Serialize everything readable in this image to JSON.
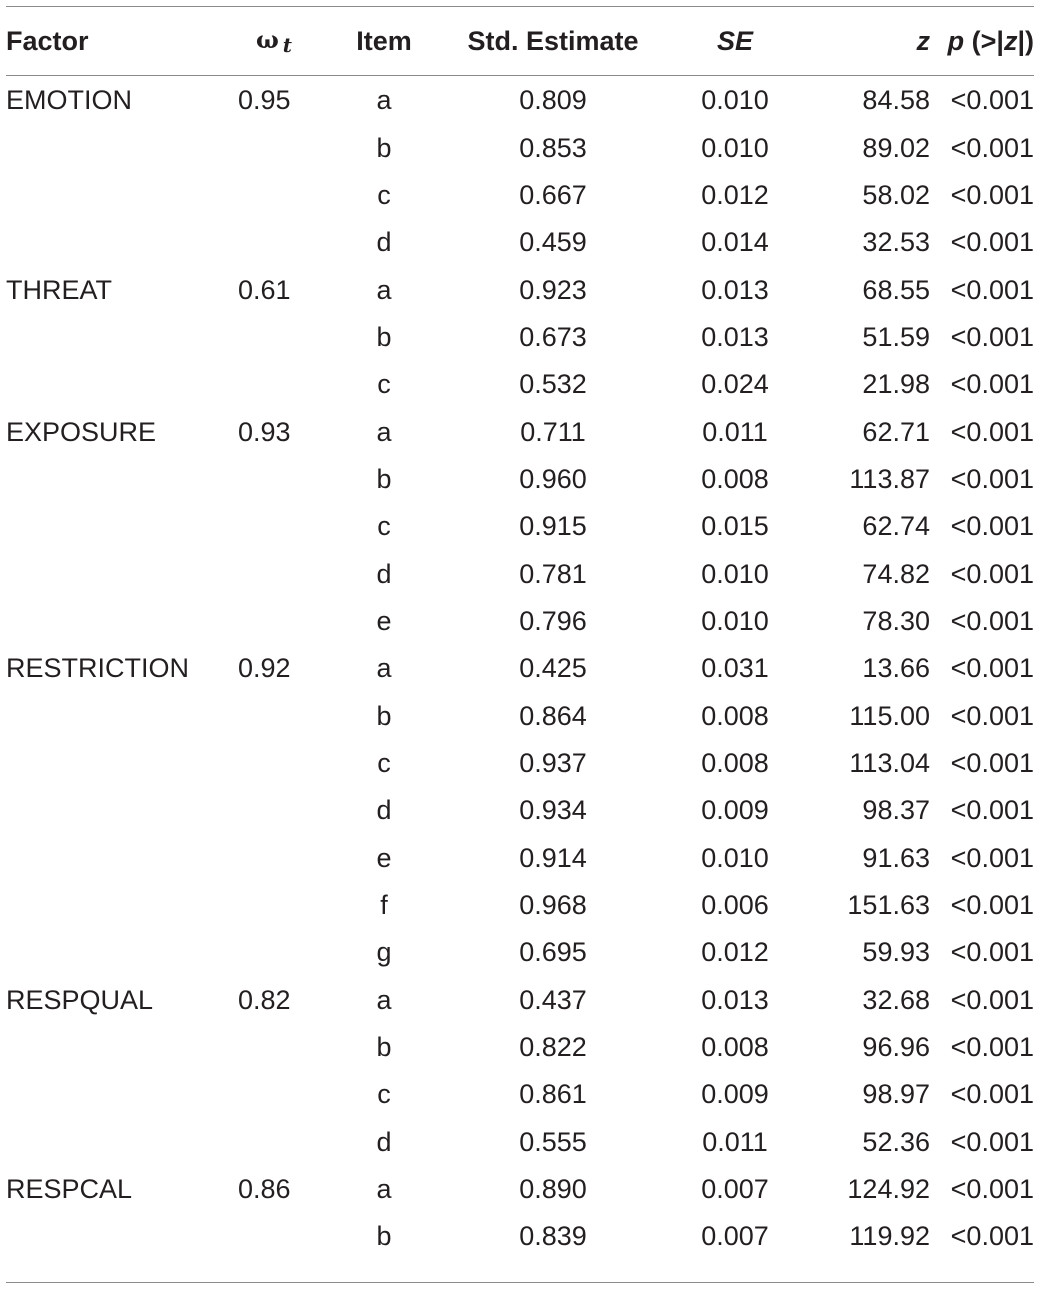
{
  "headers": {
    "factor": "Factor",
    "omega_symbol": "ω",
    "omega_sub": "t",
    "item": "Item",
    "estimate": "Std. Estimate",
    "se": "SE",
    "z": "z",
    "p_italic": "p",
    "p_rest": " (>|",
    "p_z": "z",
    "p_close": "|)"
  },
  "rows": [
    {
      "factor": "EMOTION",
      "omega": "0.95",
      "item": "a",
      "est": "0.809",
      "se": "0.010",
      "z": "84.58",
      "p": "<0.001"
    },
    {
      "factor": "",
      "omega": "",
      "item": "b",
      "est": "0.853",
      "se": "0.010",
      "z": "89.02",
      "p": "<0.001"
    },
    {
      "factor": "",
      "omega": "",
      "item": "c",
      "est": "0.667",
      "se": "0.012",
      "z": "58.02",
      "p": "<0.001"
    },
    {
      "factor": "",
      "omega": "",
      "item": "d",
      "est": "0.459",
      "se": "0.014",
      "z": "32.53",
      "p": "<0.001"
    },
    {
      "factor": "THREAT",
      "omega": "0.61",
      "item": "a",
      "est": "0.923",
      "se": "0.013",
      "z": "68.55",
      "p": "<0.001"
    },
    {
      "factor": "",
      "omega": "",
      "item": "b",
      "est": "0.673",
      "se": "0.013",
      "z": "51.59",
      "p": "<0.001"
    },
    {
      "factor": "",
      "omega": "",
      "item": "c",
      "est": "0.532",
      "se": "0.024",
      "z": "21.98",
      "p": "<0.001"
    },
    {
      "factor": "EXPOSURE",
      "omega": "0.93",
      "item": "a",
      "est": "0.711",
      "se": "0.011",
      "z": "62.71",
      "p": "<0.001"
    },
    {
      "factor": "",
      "omega": "",
      "item": "b",
      "est": "0.960",
      "se": "0.008",
      "z": "113.87",
      "p": "<0.001"
    },
    {
      "factor": "",
      "omega": "",
      "item": "c",
      "est": "0.915",
      "se": "0.015",
      "z": "62.74",
      "p": "<0.001"
    },
    {
      "factor": "",
      "omega": "",
      "item": "d",
      "est": "0.781",
      "se": "0.010",
      "z": "74.82",
      "p": "<0.001"
    },
    {
      "factor": "",
      "omega": "",
      "item": "e",
      "est": "0.796",
      "se": "0.010",
      "z": "78.30",
      "p": "<0.001"
    },
    {
      "factor": "RESTRICTION",
      "omega": "0.92",
      "item": "a",
      "est": "0.425",
      "se": "0.031",
      "z": "13.66",
      "p": "<0.001"
    },
    {
      "factor": "",
      "omega": "",
      "item": "b",
      "est": "0.864",
      "se": "0.008",
      "z": "115.00",
      "p": "<0.001"
    },
    {
      "factor": "",
      "omega": "",
      "item": "c",
      "est": "0.937",
      "se": "0.008",
      "z": "113.04",
      "p": "<0.001"
    },
    {
      "factor": "",
      "omega": "",
      "item": "d",
      "est": "0.934",
      "se": "0.009",
      "z": "98.37",
      "p": "<0.001"
    },
    {
      "factor": "",
      "omega": "",
      "item": "e",
      "est": "0.914",
      "se": "0.010",
      "z": "91.63",
      "p": "<0.001"
    },
    {
      "factor": "",
      "omega": "",
      "item": "f",
      "est": "0.968",
      "se": "0.006",
      "z": "151.63",
      "p": "<0.001"
    },
    {
      "factor": "",
      "omega": "",
      "item": "g",
      "est": "0.695",
      "se": "0.012",
      "z": "59.93",
      "p": "<0.001"
    },
    {
      "factor": "RESPQUAL",
      "omega": "0.82",
      "item": "a",
      "est": "0.437",
      "se": "0.013",
      "z": "32.68",
      "p": "<0.001"
    },
    {
      "factor": "",
      "omega": "",
      "item": "b",
      "est": "0.822",
      "se": "0.008",
      "z": "96.96",
      "p": "<0.001"
    },
    {
      "factor": "",
      "omega": "",
      "item": "c",
      "est": "0.861",
      "se": "0.009",
      "z": "98.97",
      "p": "<0.001"
    },
    {
      "factor": "",
      "omega": "",
      "item": "d",
      "est": "0.555",
      "se": "0.011",
      "z": "52.36",
      "p": "<0.001"
    },
    {
      "factor": "RESPCAL",
      "omega": "0.86",
      "item": "a",
      "est": "0.890",
      "se": "0.007",
      "z": "124.92",
      "p": "<0.001"
    },
    {
      "factor": "",
      "omega": "",
      "item": "b",
      "est": "0.839",
      "se": "0.007",
      "z": "119.92",
      "p": "<0.001"
    }
  ]
}
